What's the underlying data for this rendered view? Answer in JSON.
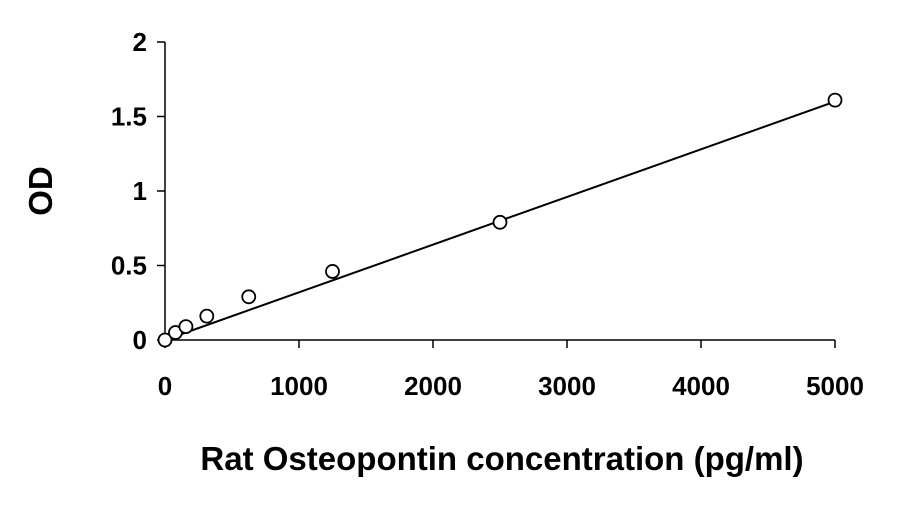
{
  "chart_data": {
    "type": "scatter",
    "title": "",
    "xlabel": "Rat Osteopontin concentration (pg/ml)",
    "ylabel": "OD",
    "xlim": [
      0,
      5000
    ],
    "ylim": [
      0,
      2
    ],
    "xticks": [
      0,
      1000,
      2000,
      3000,
      4000,
      5000
    ],
    "xtick_labels": [
      "0",
      "1000",
      "2000",
      "3000",
      "4000",
      "5000"
    ],
    "yticks": [
      0,
      0.5,
      1,
      1.5,
      2
    ],
    "ytick_labels": [
      "0",
      "0.5",
      "1",
      "1.5",
      "2"
    ],
    "grid": false,
    "legend": "none",
    "series": [
      {
        "marker": "open-circle",
        "x": [
          0,
          78,
          156,
          312,
          625,
          1250,
          2500,
          5000
        ],
        "y": [
          0.0,
          0.05,
          0.09,
          0.16,
          0.29,
          0.46,
          0.79,
          1.61
        ]
      }
    ],
    "trendline": {
      "type": "linear",
      "x": [
        0,
        5000
      ],
      "y": [
        0.0,
        1.6
      ]
    }
  }
}
